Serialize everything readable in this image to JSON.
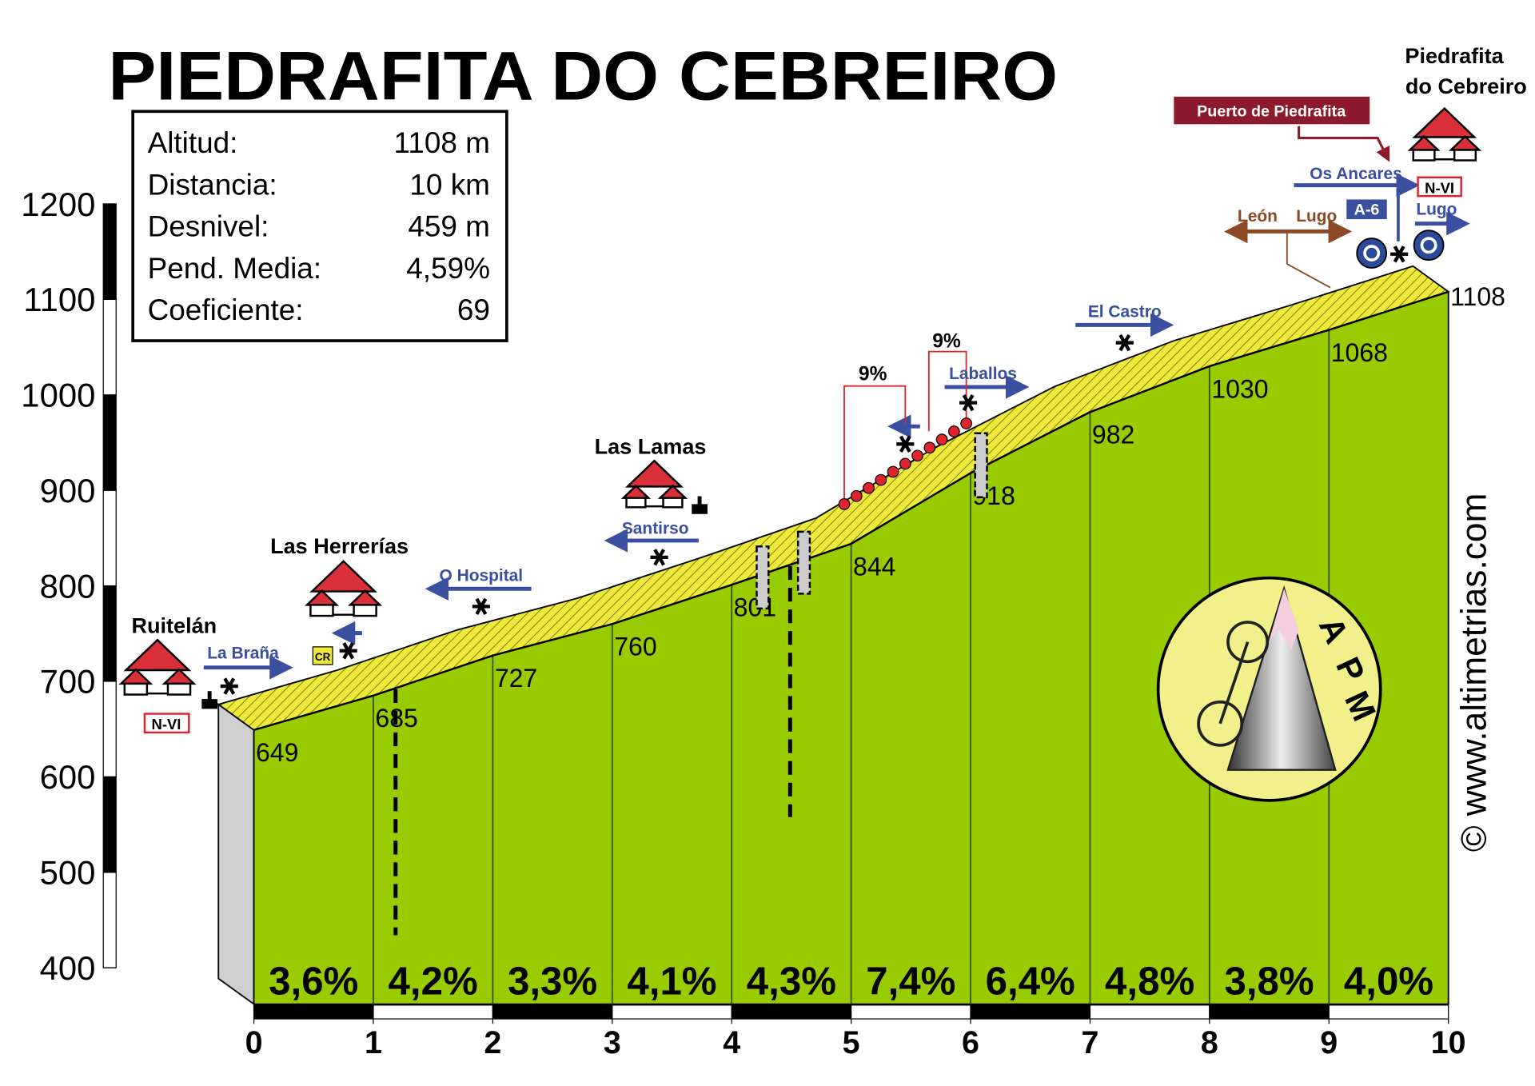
{
  "chart_data": {
    "type": "profile",
    "title": "PIEDRAFITA DO CEBREIRO",
    "stats": [
      [
        "Altitud:",
        "1108 m"
      ],
      [
        "Distancia:",
        "10 km"
      ],
      [
        "Desnivel:",
        "459 m"
      ],
      [
        "Pend. Media:",
        "4,59%"
      ],
      [
        "Coeficiente:",
        "69"
      ]
    ],
    "x": [
      0,
      1,
      2,
      3,
      4,
      5,
      6,
      7,
      8,
      9,
      10
    ],
    "series": [
      {
        "color": "#99cc00",
        "values": [
          649,
          685,
          727,
          760,
          801,
          844,
          918,
          982,
          1030,
          1068,
          1108
        ]
      }
    ],
    "segment_labels": [
      "3,6%",
      "4,2%",
      "3,3%",
      "4,1%",
      "4,3%",
      "7,4%",
      "6,4%",
      "4,8%",
      "3,8%",
      "4,0%"
    ],
    "xlim": [
      0,
      10
    ],
    "xticks": [
      0,
      1,
      2,
      3,
      4,
      5,
      6,
      7,
      8,
      9,
      10
    ],
    "ylim": [
      400,
      1200
    ],
    "yticks": [
      400,
      500,
      600,
      700,
      800,
      900,
      1000,
      1100,
      1200
    ],
    "places": [
      "Ruitelán",
      "Las Herrerías",
      "Las Lamas",
      "Piedrafita",
      "do Cebreiro"
    ],
    "roads": [
      "La Braña",
      "O Hospital",
      "Santirso",
      "Laballos",
      "El Castro",
      "Os Ancares",
      "Lugo",
      "León",
      "Lugo",
      "A-6",
      "N-VI",
      "N-VI"
    ],
    "pass": "Puerto de Piedrafita",
    "steep_labels": [
      "9%",
      "9%"
    ],
    "icons": [
      "CR"
    ],
    "logo": [
      "A",
      "P",
      "M"
    ],
    "credit": "© www.altimetrias.com"
  }
}
